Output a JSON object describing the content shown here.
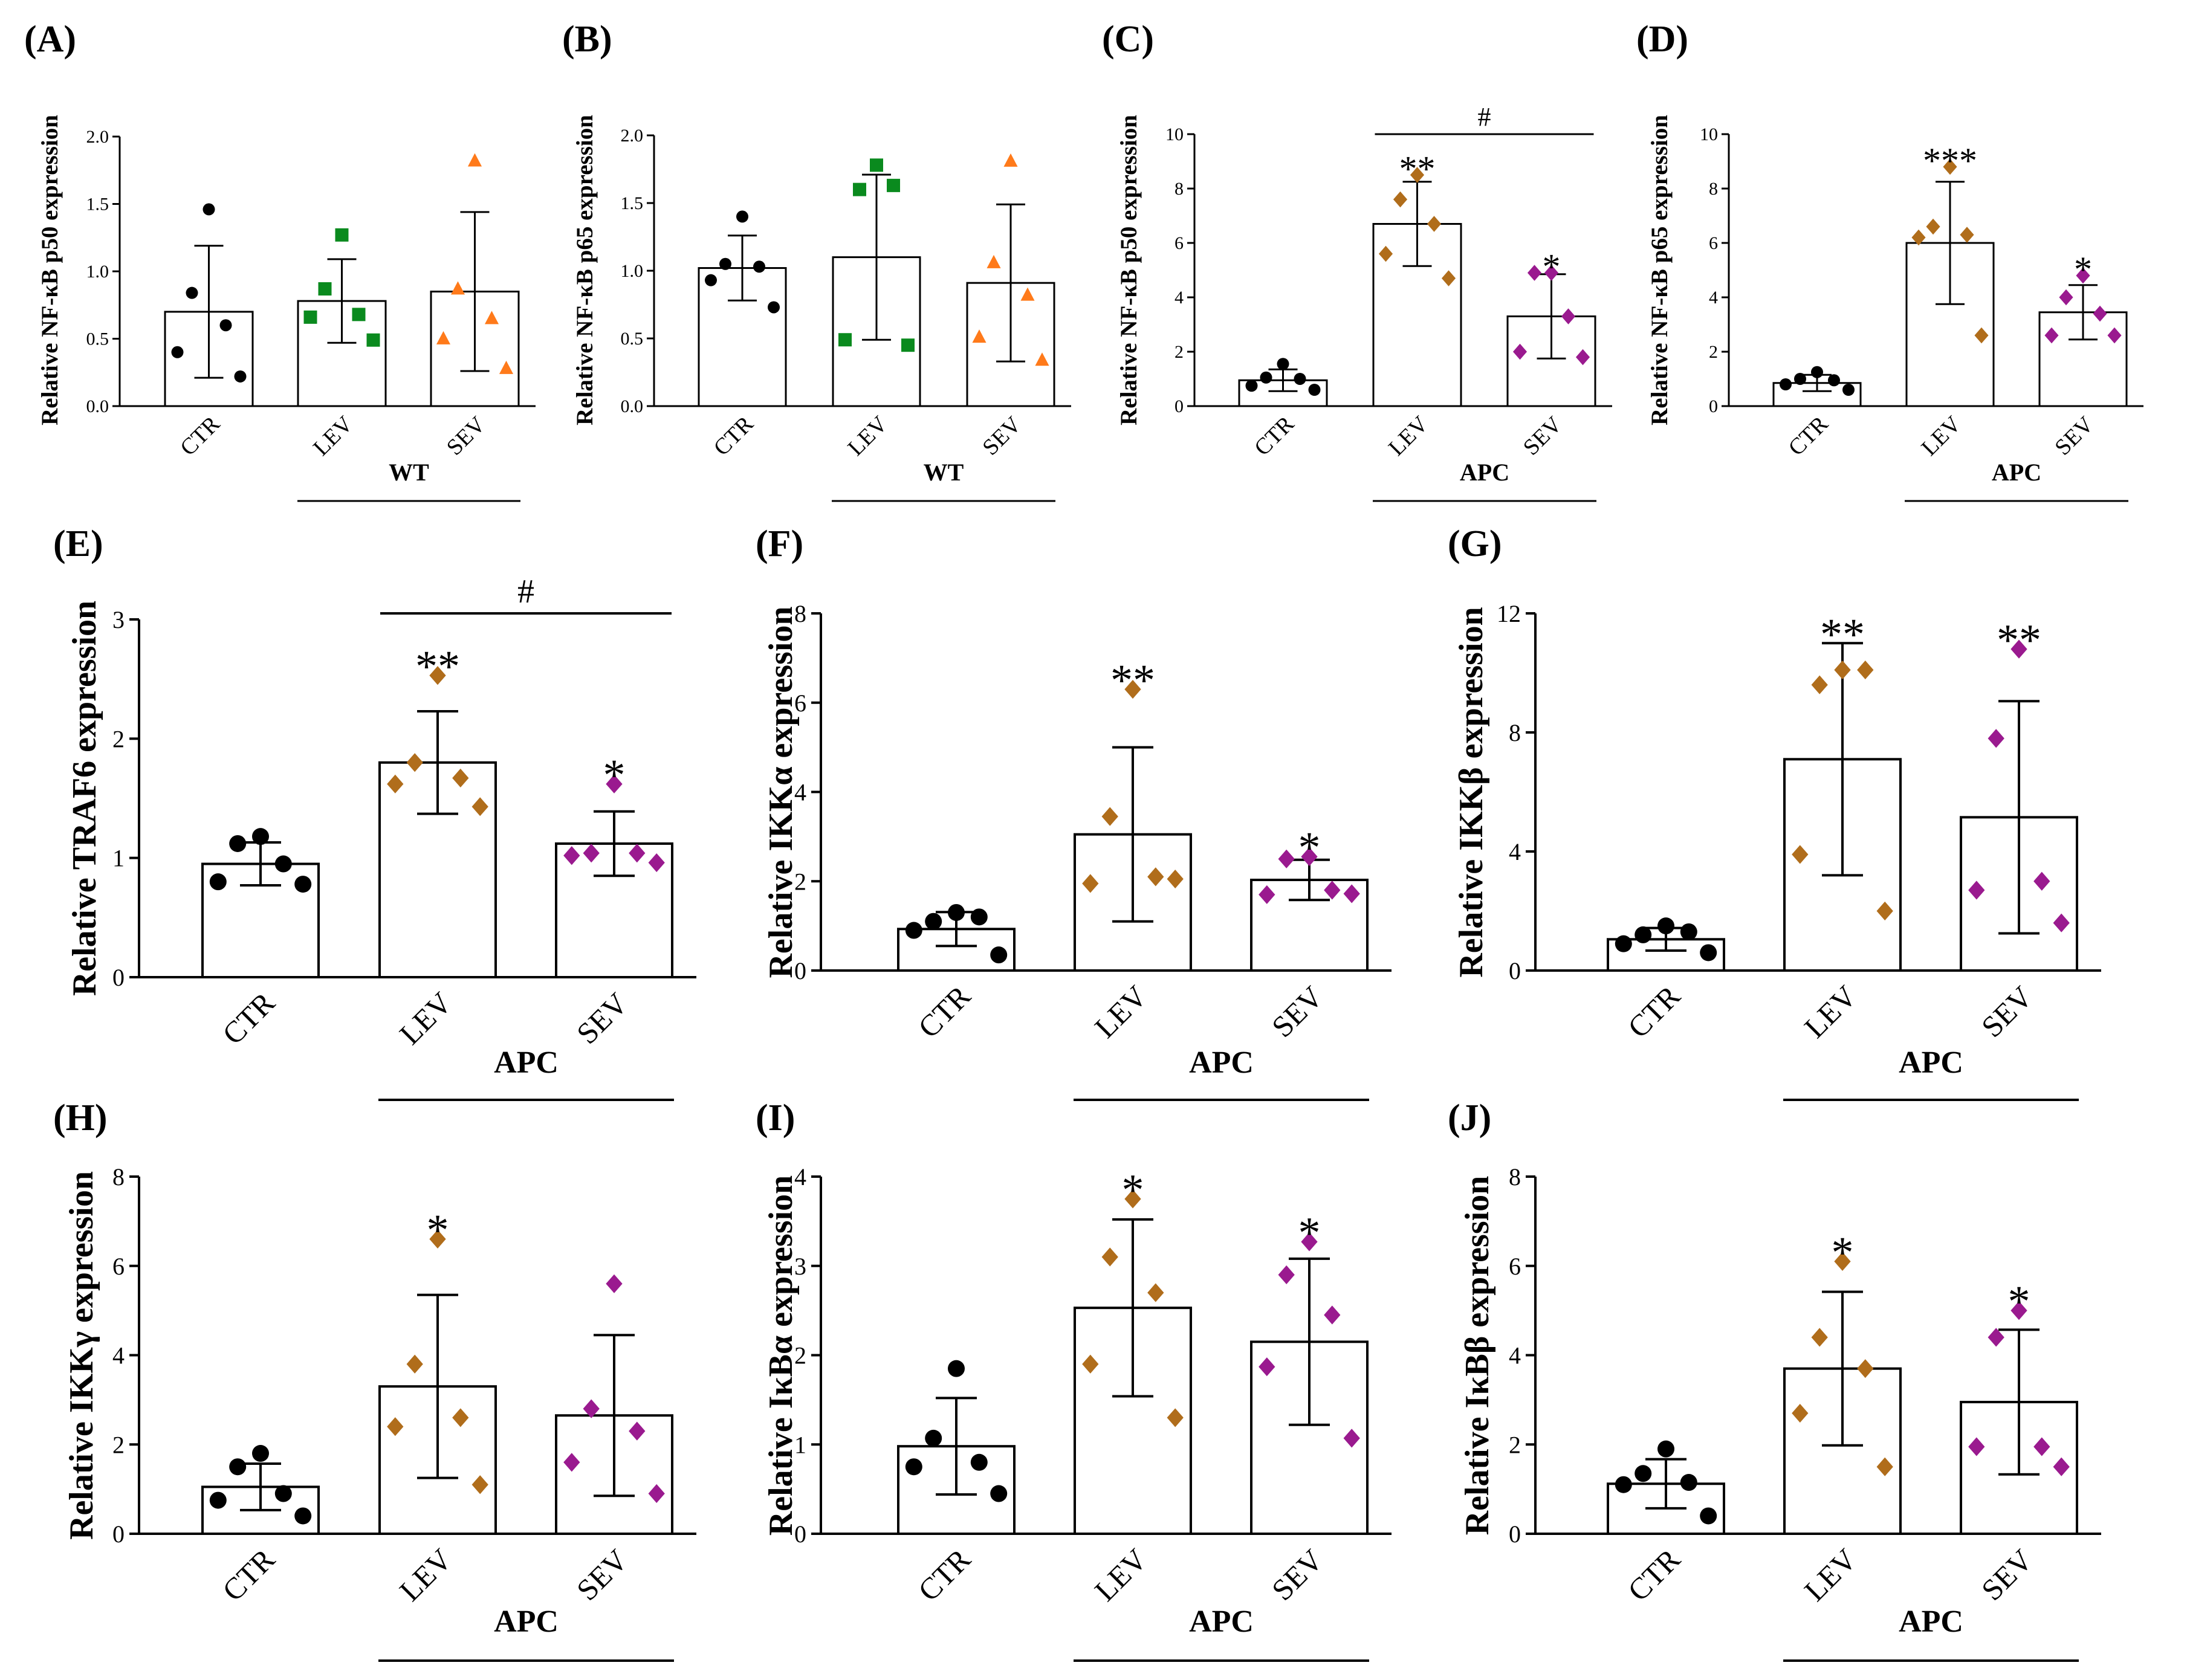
{
  "colors": {
    "CTR": "#000000",
    "LEV_wt": "#0a8a1e",
    "SEV_wt": "#ff7a1a",
    "LEV_apc": "#b06d1b",
    "SEV_apc": "#9a1a8f"
  },
  "chart_data": [
    {
      "id": "A",
      "type": "bar",
      "letter": "(A)",
      "ylabel": "Relative NF-κB p50  expression",
      "categories": [
        "CTR",
        "LEV",
        "SEV"
      ],
      "group_label": "WT",
      "ylim": [
        0,
        2.0
      ],
      "yticks": [
        "0.0",
        "0.5",
        "1.0",
        "1.5",
        "2.0"
      ],
      "series": [
        {
          "name": "CTR",
          "mean": 0.7,
          "sd": 0.49,
          "points": [
            1.46,
            0.84,
            0.6,
            0.4,
            0.22
          ],
          "marker": "circle",
          "color": "#000000",
          "sig": ""
        },
        {
          "name": "LEV",
          "mean": 0.78,
          "sd": 0.31,
          "points": [
            1.27,
            0.87,
            0.68,
            0.66,
            0.49
          ],
          "marker": "square",
          "color": "#0a8a1e",
          "sig": ""
        },
        {
          "name": "SEV",
          "mean": 0.85,
          "sd": 0.59,
          "points": [
            1.82,
            0.87,
            0.65,
            0.5,
            0.28
          ],
          "marker": "triangle",
          "color": "#ff7a1a",
          "sig": ""
        }
      ],
      "bracket": null
    },
    {
      "id": "B",
      "type": "bar",
      "letter": "(B)",
      "ylabel": "Relative NF-κB p65  expression",
      "categories": [
        "CTR",
        "LEV",
        "SEV"
      ],
      "group_label": "WT",
      "ylim": [
        0,
        2.0
      ],
      "yticks": [
        "0.0",
        "0.5",
        "1.0",
        "1.5",
        "2.0"
      ],
      "series": [
        {
          "name": "CTR",
          "mean": 1.02,
          "sd": 0.24,
          "points": [
            1.4,
            1.05,
            1.03,
            0.93,
            0.73
          ],
          "marker": "circle",
          "color": "#000000",
          "sig": ""
        },
        {
          "name": "LEV",
          "mean": 1.1,
          "sd": 0.61,
          "points": [
            1.78,
            1.6,
            1.63,
            0.49,
            0.45
          ],
          "marker": "square",
          "color": "#0a8a1e",
          "sig": ""
        },
        {
          "name": "SEV",
          "mean": 0.91,
          "sd": 0.58,
          "points": [
            1.81,
            1.06,
            0.82,
            0.51,
            0.34
          ],
          "marker": "triangle",
          "color": "#ff7a1a",
          "sig": ""
        }
      ],
      "bracket": null
    },
    {
      "id": "C",
      "type": "bar",
      "letter": "(C)",
      "ylabel": "Relative NF-κB p50  expression",
      "categories": [
        "CTR",
        "LEV",
        "SEV"
      ],
      "group_label": "APC",
      "ylim": [
        0,
        10
      ],
      "yticks": [
        "0",
        "2",
        "4",
        "6",
        "8",
        "10"
      ],
      "series": [
        {
          "name": "CTR",
          "mean": 0.95,
          "sd": 0.4,
          "points": [
            1.55,
            1.05,
            1.0,
            0.75,
            0.6
          ],
          "marker": "circle",
          "color": "#000000",
          "sig": ""
        },
        {
          "name": "LEV",
          "mean": 6.7,
          "sd": 1.55,
          "points": [
            8.5,
            7.6,
            6.7,
            5.6,
            4.7
          ],
          "marker": "diamond",
          "color": "#b06d1b",
          "sig": "**"
        },
        {
          "name": "SEV",
          "mean": 3.3,
          "sd": 1.55,
          "points": [
            4.9,
            4.9,
            3.3,
            2.0,
            1.8
          ],
          "marker": "diamond",
          "color": "#9a1a8f",
          "sig": "*"
        }
      ],
      "bracket": {
        "from": 1,
        "to": 2,
        "y": 10.0,
        "label": "#"
      }
    },
    {
      "id": "D",
      "type": "bar",
      "letter": "(D)",
      "ylabel": "Relative NF-κB p65  expression",
      "categories": [
        "CTR",
        "LEV",
        "SEV"
      ],
      "group_label": "APC",
      "ylim": [
        0,
        10
      ],
      "yticks": [
        "0",
        "2",
        "4",
        "6",
        "8",
        "10"
      ],
      "series": [
        {
          "name": "CTR",
          "mean": 0.85,
          "sd": 0.3,
          "points": [
            1.25,
            1.0,
            0.95,
            0.8,
            0.6
          ],
          "marker": "circle",
          "color": "#000000",
          "sig": ""
        },
        {
          "name": "LEV",
          "mean": 6.0,
          "sd": 2.25,
          "points": [
            8.8,
            6.6,
            6.3,
            6.2,
            2.6
          ],
          "marker": "diamond",
          "color": "#b06d1b",
          "sig": "***"
        },
        {
          "name": "SEV",
          "mean": 3.45,
          "sd": 1.0,
          "points": [
            4.8,
            4.0,
            3.4,
            2.6,
            2.6
          ],
          "marker": "diamond",
          "color": "#9a1a8f",
          "sig": "*"
        }
      ],
      "bracket": null
    },
    {
      "id": "E",
      "type": "bar",
      "letter": "(E)",
      "ylabel": "Relative TRAF6  expression",
      "categories": [
        "CTR",
        "LEV",
        "SEV"
      ],
      "group_label": "APC",
      "ylim": [
        0,
        3
      ],
      "yticks": [
        "0",
        "1",
        "2",
        "3"
      ],
      "series": [
        {
          "name": "CTR",
          "mean": 0.95,
          "sd": 0.18,
          "points": [
            1.18,
            1.12,
            0.95,
            0.8,
            0.78
          ],
          "marker": "circle",
          "color": "#000000",
          "sig": ""
        },
        {
          "name": "LEV",
          "mean": 1.8,
          "sd": 0.43,
          "points": [
            2.53,
            1.8,
            1.67,
            1.62,
            1.43
          ],
          "marker": "diamond",
          "color": "#b06d1b",
          "sig": "**"
        },
        {
          "name": "SEV",
          "mean": 1.12,
          "sd": 0.27,
          "points": [
            1.62,
            1.04,
            1.04,
            1.02,
            0.96
          ],
          "marker": "diamond",
          "color": "#9a1a8f",
          "sig": "*"
        }
      ],
      "bracket": {
        "from": 1,
        "to": 2,
        "y": 3.0,
        "label": "#"
      }
    },
    {
      "id": "F",
      "type": "bar",
      "letter": "(F)",
      "ylabel": "Relative IKKα  expression",
      "categories": [
        "CTR",
        "LEV",
        "SEV"
      ],
      "group_label": "APC",
      "ylim": [
        0,
        8
      ],
      "yticks": [
        "0",
        "2",
        "4",
        "6",
        "8"
      ],
      "series": [
        {
          "name": "CTR",
          "mean": 0.93,
          "sd": 0.38,
          "points": [
            1.3,
            1.1,
            1.2,
            0.9,
            0.35
          ],
          "marker": "circle",
          "color": "#000000",
          "sig": ""
        },
        {
          "name": "LEV",
          "mean": 3.05,
          "sd": 1.95,
          "points": [
            6.3,
            3.45,
            2.1,
            1.95,
            2.05
          ],
          "marker": "diamond",
          "color": "#b06d1b",
          "sig": "**"
        },
        {
          "name": "SEV",
          "mean": 2.03,
          "sd": 0.45,
          "points": [
            2.55,
            2.5,
            1.8,
            1.7,
            1.72
          ],
          "marker": "diamond",
          "color": "#9a1a8f",
          "sig": "*"
        }
      ],
      "bracket": null
    },
    {
      "id": "G",
      "type": "bar",
      "letter": "(G)",
      "ylabel": "Relative IKKβ expression",
      "categories": [
        "CTR",
        "LEV",
        "SEV"
      ],
      "group_label": "APC",
      "ylim": [
        0,
        12
      ],
      "yticks": [
        "0",
        "4",
        "8",
        "12"
      ],
      "series": [
        {
          "name": "CTR",
          "mean": 1.05,
          "sd": 0.38,
          "points": [
            1.5,
            1.2,
            1.3,
            0.9,
            0.6
          ],
          "marker": "circle",
          "color": "#000000",
          "sig": ""
        },
        {
          "name": "LEV",
          "mean": 7.1,
          "sd": 3.9,
          "points": [
            10.1,
            9.6,
            10.1,
            3.9,
            2.0
          ],
          "marker": "diamond",
          "color": "#b06d1b",
          "sig": "**"
        },
        {
          "name": "SEV",
          "mean": 5.15,
          "sd": 3.9,
          "points": [
            10.8,
            7.8,
            3.0,
            2.7,
            1.6
          ],
          "marker": "diamond",
          "color": "#9a1a8f",
          "sig": "**"
        }
      ],
      "bracket": null
    },
    {
      "id": "H",
      "type": "bar",
      "letter": "(H)",
      "ylabel": "Relative IKKγ expression",
      "categories": [
        "CTR",
        "LEV",
        "SEV"
      ],
      "group_label": "APC",
      "ylim": [
        0,
        8
      ],
      "yticks": [
        "0",
        "2",
        "4",
        "6",
        "8"
      ],
      "series": [
        {
          "name": "CTR",
          "mean": 1.05,
          "sd": 0.52,
          "points": [
            1.8,
            1.5,
            0.9,
            0.75,
            0.4
          ],
          "marker": "circle",
          "color": "#000000",
          "sig": ""
        },
        {
          "name": "LEV",
          "mean": 3.3,
          "sd": 2.05,
          "points": [
            6.6,
            3.8,
            2.6,
            2.4,
            1.1
          ],
          "marker": "diamond",
          "color": "#b06d1b",
          "sig": "*"
        },
        {
          "name": "SEV",
          "mean": 2.65,
          "sd": 1.8,
          "points": [
            5.6,
            2.8,
            2.3,
            1.6,
            0.9
          ],
          "marker": "diamond",
          "color": "#9a1a8f",
          "sig": ""
        }
      ],
      "bracket": null
    },
    {
      "id": "I",
      "type": "bar",
      "letter": "(I)",
      "ylabel": "Relative IκBα  expression",
      "categories": [
        "CTR",
        "LEV",
        "SEV"
      ],
      "group_label": "APC",
      "ylim": [
        0,
        4
      ],
      "yticks": [
        "0",
        "1",
        "2",
        "3",
        "4"
      ],
      "series": [
        {
          "name": "CTR",
          "mean": 0.98,
          "sd": 0.54,
          "points": [
            1.85,
            1.07,
            0.8,
            0.75,
            0.45
          ],
          "marker": "circle",
          "color": "#000000",
          "sig": ""
        },
        {
          "name": "LEV",
          "mean": 2.53,
          "sd": 0.99,
          "points": [
            3.75,
            3.1,
            2.7,
            1.9,
            1.3
          ],
          "marker": "diamond",
          "color": "#b06d1b",
          "sig": "*"
        },
        {
          "name": "SEV",
          "mean": 2.15,
          "sd": 0.93,
          "points": [
            3.27,
            2.9,
            2.45,
            1.87,
            1.07
          ],
          "marker": "diamond",
          "color": "#9a1a8f",
          "sig": "*"
        }
      ],
      "bracket": null
    },
    {
      "id": "J",
      "type": "bar",
      "letter": "(J)",
      "ylabel": "Relative IκBβ  expression",
      "categories": [
        "CTR",
        "LEV",
        "SEV"
      ],
      "group_label": "APC",
      "ylim": [
        0,
        8
      ],
      "yticks": [
        "0",
        "2",
        "4",
        "6",
        "8"
      ],
      "series": [
        {
          "name": "CTR",
          "mean": 1.12,
          "sd": 0.55,
          "points": [
            1.9,
            1.35,
            1.15,
            1.1,
            0.4
          ],
          "marker": "circle",
          "color": "#000000",
          "sig": ""
        },
        {
          "name": "LEV",
          "mean": 3.7,
          "sd": 1.72,
          "points": [
            6.1,
            4.4,
            3.7,
            2.7,
            1.5
          ],
          "marker": "diamond",
          "color": "#b06d1b",
          "sig": "*"
        },
        {
          "name": "SEV",
          "mean": 2.95,
          "sd": 1.62,
          "points": [
            5.0,
            4.4,
            1.95,
            1.95,
            1.5
          ],
          "marker": "diamond",
          "color": "#9a1a8f",
          "sig": "*"
        }
      ],
      "bracket": null
    }
  ]
}
